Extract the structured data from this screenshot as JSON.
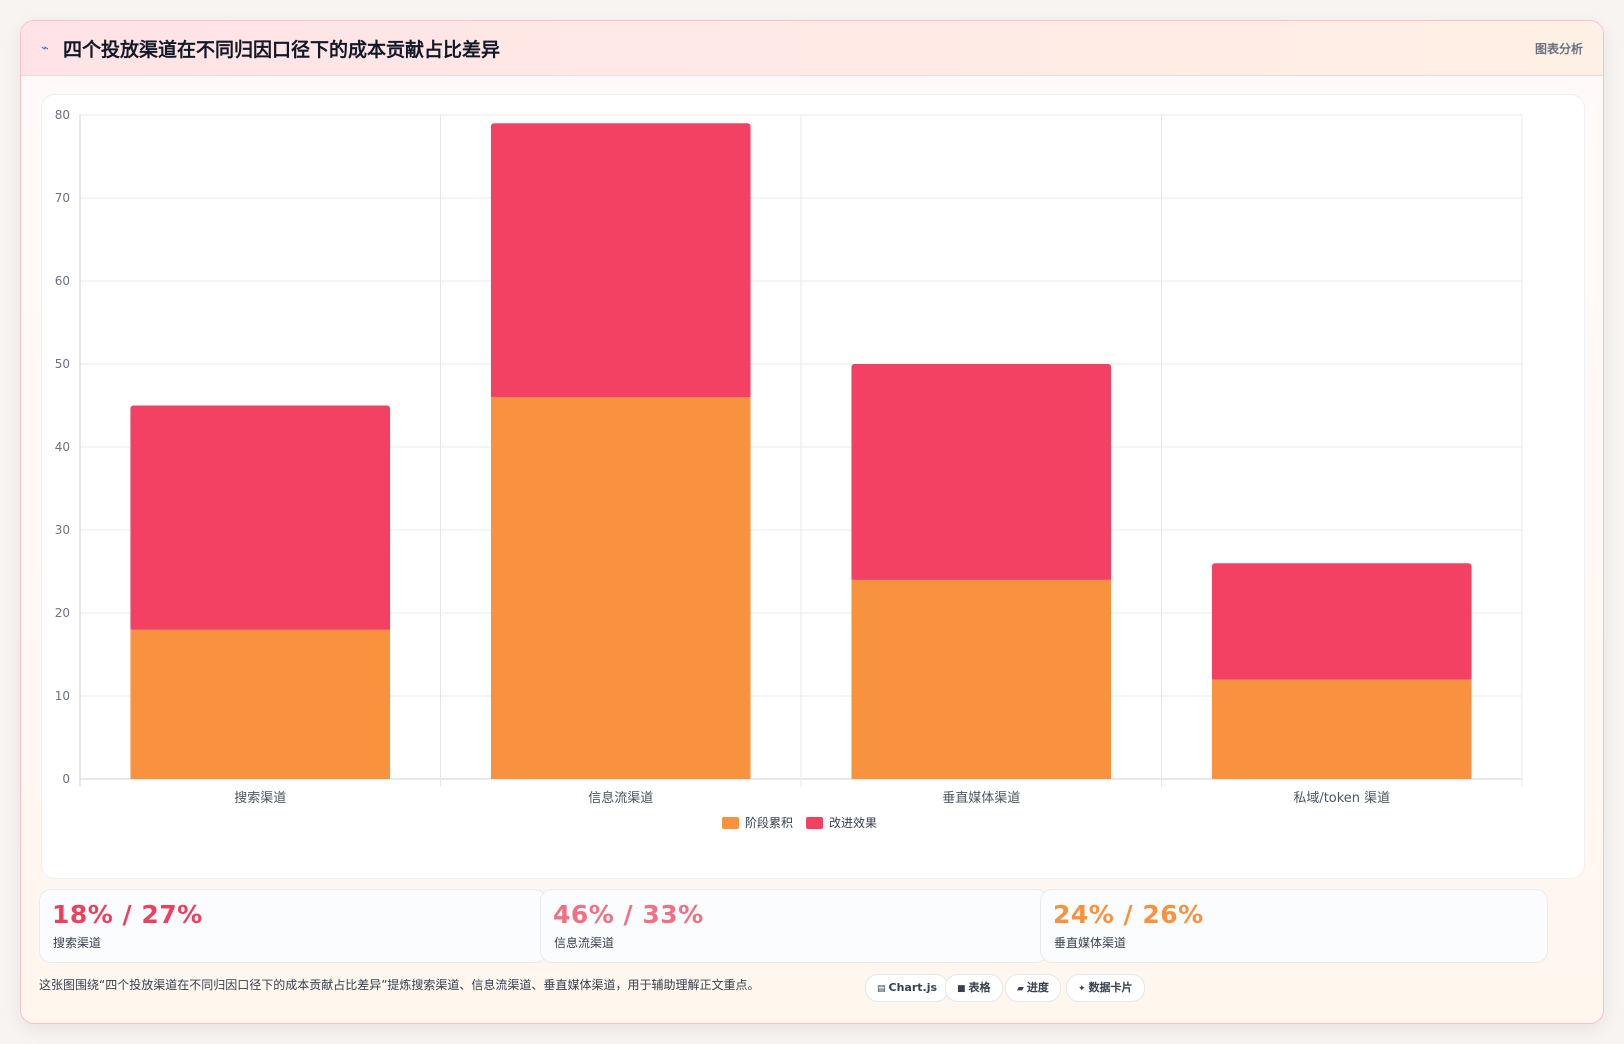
{
  "header": {
    "icon": "chart-line-icon",
    "title": "四个投放渠道在不同归因口径下的成本贡献占比差异",
    "tag": "图表分析"
  },
  "chart_data": {
    "type": "bar",
    "stacked": true,
    "categories": [
      "搜索渠道",
      "信息流渠道",
      "垂直媒体渠道",
      "私域/token 渠道"
    ],
    "series": [
      {
        "name": "阶段累积",
        "color": "#f9923e",
        "values": [
          18,
          46,
          24,
          12
        ]
      },
      {
        "name": "改进效果",
        "color": "#f24162",
        "values": [
          27,
          33,
          26,
          14
        ]
      }
    ],
    "ylim": [
      0,
      80
    ],
    "yticks": [
      0,
      10,
      20,
      30,
      40,
      50,
      60,
      70,
      80
    ],
    "grid": true,
    "legend_position": "bottom"
  },
  "stats": [
    {
      "value": "18% / 27%",
      "label": "搜索渠道",
      "color": "#ee3f5f"
    },
    {
      "value": "46% / 33%",
      "label": "信息流渠道",
      "color": "#f07184"
    },
    {
      "value": "24% / 26%",
      "label": "垂直媒体渠道",
      "color": "#f9923e"
    }
  ],
  "footer": {
    "note": "这张图围绕“四个投放渠道在不同归因口径下的成本贡献占比差异”提炼搜索渠道、信息流渠道、垂直媒体渠道，用于辅助理解正文重点。",
    "chips": [
      {
        "icon": "chart-icon",
        "glyph": "▤",
        "label": "Chart.js"
      },
      {
        "icon": "table-icon",
        "glyph": "■",
        "label": "表格"
      },
      {
        "icon": "progress-icon",
        "glyph": "▰",
        "label": "进度"
      },
      {
        "icon": "data-card-icon",
        "glyph": "✦",
        "label": "数据卡片"
      }
    ]
  }
}
